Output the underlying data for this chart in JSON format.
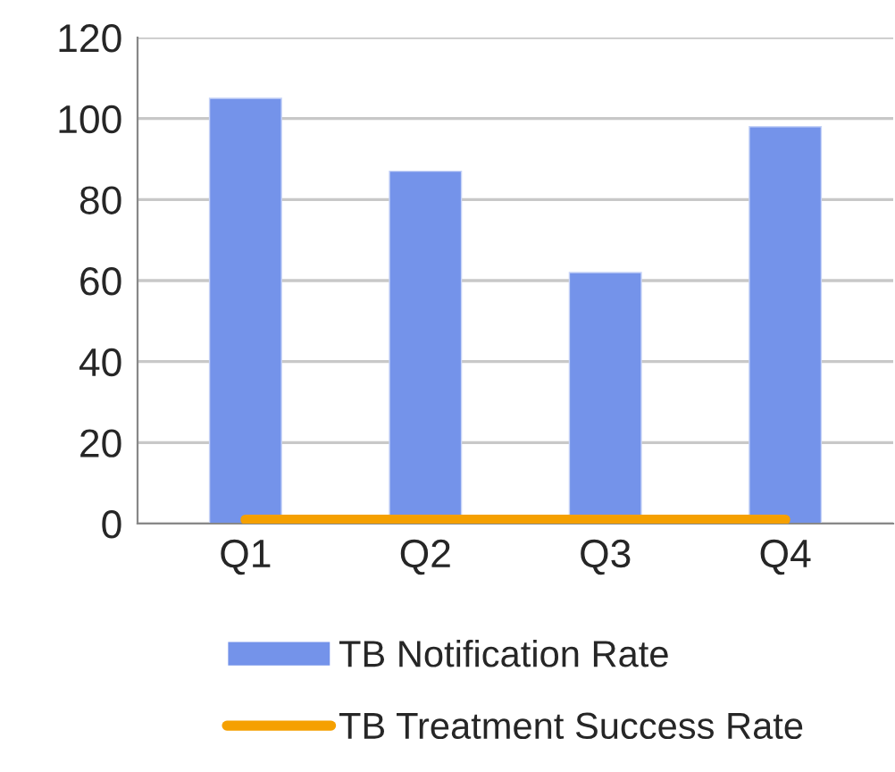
{
  "chart_data": {
    "type": "bar",
    "categories": [
      "Q1",
      "Q2",
      "Q3",
      "Q4"
    ],
    "series": [
      {
        "name": "TB Notification Rate",
        "color": "#7493ea",
        "values": [
          105,
          87,
          62,
          98
        ]
      },
      {
        "name": "TB Treatment Success Rate",
        "type": "line",
        "color": "#f5a000",
        "values": [
          1,
          1,
          1,
          1
        ]
      }
    ],
    "ylim": [
      0,
      120
    ],
    "yticks": [
      0,
      20,
      40,
      60,
      80,
      100,
      120
    ],
    "grid": "y",
    "legend": "bottom"
  }
}
